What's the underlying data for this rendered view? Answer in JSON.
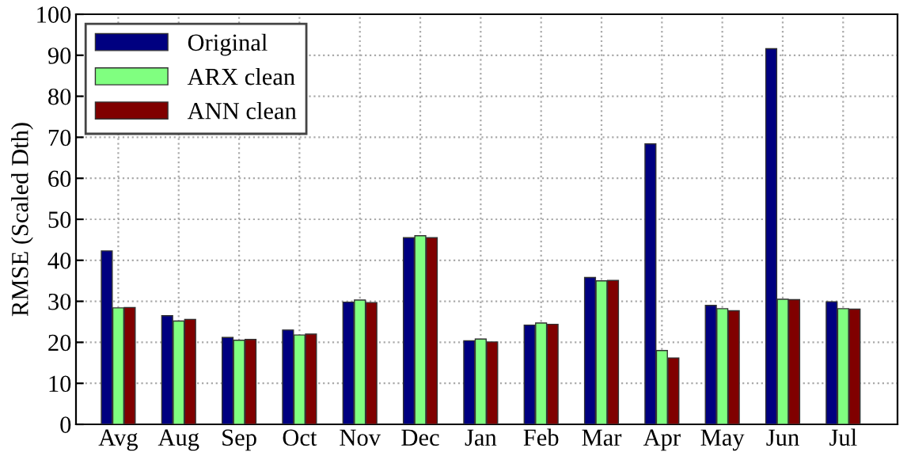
{
  "chart_data": {
    "type": "bar",
    "ylabel": "RMSE (Scaled Dth)",
    "categories": [
      "Avg",
      "Aug",
      "Sep",
      "Oct",
      "Nov",
      "Dec",
      "Jan",
      "Feb",
      "Mar",
      "Apr",
      "May",
      "Jun",
      "Jul"
    ],
    "series": [
      {
        "name": "Original",
        "color": "#000080",
        "values": [
          42.3,
          26.5,
          21.2,
          23.0,
          29.8,
          45.5,
          20.4,
          24.2,
          35.8,
          68.4,
          29.0,
          91.6,
          29.9
        ]
      },
      {
        "name": "ARX clean",
        "color": "#80ff80",
        "values": [
          28.4,
          25.2,
          20.5,
          21.8,
          30.3,
          46.0,
          20.8,
          24.7,
          35.0,
          18.0,
          28.2,
          30.5,
          28.2
        ]
      },
      {
        "name": "ANN clean",
        "color": "#800000",
        "values": [
          28.5,
          25.6,
          20.7,
          22.0,
          29.7,
          45.5,
          20.1,
          24.4,
          35.1,
          16.2,
          27.7,
          30.4,
          28.1
        ]
      }
    ],
    "ylim": [
      0,
      100
    ],
    "yticks": [
      0,
      10,
      20,
      30,
      40,
      50,
      60,
      70,
      80,
      90,
      100
    ],
    "grid": true,
    "legend": "top left"
  }
}
